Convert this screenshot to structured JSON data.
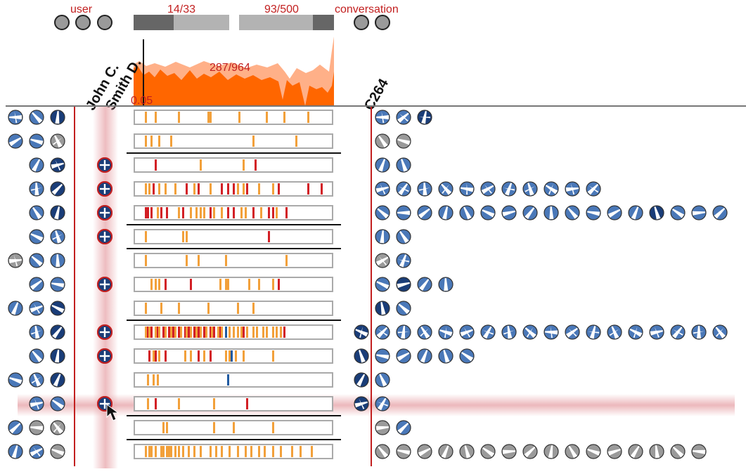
{
  "header": {
    "user_label": "user",
    "conversation_label": "conversation",
    "left_counter": "14/33",
    "right_counter": "93/500",
    "left_fill_fraction": 0.42,
    "right_fill_fraction": 0.78,
    "histogram_counter": "287/964",
    "histogram_threshold": "0.05"
  },
  "columns": {
    "user_a": "John C.",
    "user_b": "Smith D.",
    "conversation": "C264"
  },
  "colors": {
    "accent_red": "#c21f1f",
    "orange": "#ff6600",
    "orange_light": "#ffb088",
    "mark_orange": "#f2a03a",
    "mark_red": "#d21f25",
    "mark_blue": "#1f5aa0",
    "icon_blue": "#4a78b8",
    "icon_dark": "#1a3d78",
    "icon_gray": "#9a9a9a",
    "highlight": "#e8a0a6"
  },
  "rows": [
    {
      "left": [
        "blue",
        "blue",
        "dark"
      ],
      "smith": false,
      "marks": [
        [
          "o",
          5
        ],
        [
          "o",
          10
        ],
        [
          "o",
          22
        ],
        [
          "o",
          37
        ],
        [
          "o",
          38
        ],
        [
          "o",
          53
        ],
        [
          "o",
          67
        ],
        [
          "o",
          76
        ],
        [
          "o",
          88
        ]
      ],
      "right": [
        "blue",
        "blue",
        "dark"
      ],
      "c264": false,
      "sep": false
    },
    {
      "left": [
        "blue",
        "blue",
        "gray"
      ],
      "extra": 1,
      "smith": false,
      "marks": [
        [
          "o",
          5
        ],
        [
          "o",
          8
        ],
        [
          "o",
          12
        ],
        [
          "o",
          18
        ],
        [
          "o",
          60
        ],
        [
          "o",
          82
        ]
      ],
      "right": [
        "gray",
        "gray"
      ],
      "c264": false,
      "sep": true
    },
    {
      "left": [
        "blue",
        "dark"
      ],
      "smith": true,
      "marks": [
        [
          "r",
          10
        ],
        [
          "o",
          33
        ],
        [
          "o",
          55
        ],
        [
          "r",
          61
        ]
      ],
      "right": [
        "blue",
        "blue"
      ],
      "c264": false,
      "sep": false
    },
    {
      "left": [
        "blue",
        "dark"
      ],
      "smith": true,
      "marks": [
        [
          "o",
          5
        ],
        [
          "o",
          7
        ],
        [
          "r",
          9
        ],
        [
          "o",
          12
        ],
        [
          "o",
          15
        ],
        [
          "o",
          20
        ],
        [
          "r",
          26
        ],
        [
          "o",
          30
        ],
        [
          "r",
          32
        ],
        [
          "o",
          38
        ],
        [
          "r",
          44
        ],
        [
          "r",
          47
        ],
        [
          "r",
          50
        ],
        [
          "o",
          52
        ],
        [
          "o",
          55
        ],
        [
          "r",
          57
        ],
        [
          "o",
          63
        ],
        [
          "o",
          70
        ],
        [
          "r",
          73
        ],
        [
          "r",
          88
        ],
        [
          "r",
          95
        ]
      ],
      "right": [
        "blue",
        "blue",
        "blue",
        "blue",
        "blue",
        "blue",
        "blue",
        "blue",
        "blue",
        "blue",
        "blue"
      ],
      "c264": false,
      "sep": false
    },
    {
      "left": [
        "blue",
        "dark"
      ],
      "smith": true,
      "marks": [
        [
          "r",
          5
        ],
        [
          "r",
          6
        ],
        [
          "r",
          8
        ],
        [
          "o",
          11
        ],
        [
          "r",
          13
        ],
        [
          "r",
          16
        ],
        [
          "o",
          22
        ],
        [
          "r",
          24
        ],
        [
          "o",
          28
        ],
        [
          "o",
          31
        ],
        [
          "o",
          33
        ],
        [
          "o",
          35
        ],
        [
          "r",
          38
        ],
        [
          "o",
          40
        ],
        [
          "o",
          44
        ],
        [
          "r",
          47
        ],
        [
          "r",
          50
        ],
        [
          "o",
          54
        ],
        [
          "o",
          56
        ],
        [
          "r",
          60
        ],
        [
          "o",
          64
        ],
        [
          "r",
          68
        ],
        [
          "r",
          70
        ],
        [
          "o",
          72
        ],
        [
          "r",
          77
        ]
      ],
      "right": [
        "blue",
        "blue",
        "blue",
        "blue",
        "blue",
        "blue",
        "blue",
        "blue",
        "blue",
        "blue",
        "blue",
        "blue",
        "blue",
        "dark",
        "blue",
        "blue",
        "blue",
        "blue",
        "blue",
        "blue"
      ],
      "c264": false,
      "sep": true
    },
    {
      "left": [
        "blue",
        "blue"
      ],
      "smith": true,
      "marks": [
        [
          "o",
          5
        ],
        [
          "o",
          24
        ],
        [
          "o",
          26
        ],
        [
          "r",
          68
        ]
      ],
      "right": [
        "blue",
        "blue"
      ],
      "c264": false,
      "sep": true
    },
    {
      "left": [
        "gray",
        "blue",
        "blue"
      ],
      "extra": 1,
      "smith": false,
      "marks": [
        [
          "o",
          5
        ],
        [
          "o",
          26
        ],
        [
          "o",
          32
        ],
        [
          "o",
          46
        ],
        [
          "o",
          77
        ]
      ],
      "right": [
        "gray",
        "blue"
      ],
      "c264": false,
      "sep": false
    },
    {
      "left": [
        "blue",
        "blue"
      ],
      "smith": true,
      "marks": [
        [
          "o",
          8
        ],
        [
          "o",
          10
        ],
        [
          "o",
          12
        ],
        [
          "r",
          15
        ],
        [
          "r",
          28
        ],
        [
          "o",
          43
        ],
        [
          "o",
          46
        ],
        [
          "o",
          47
        ],
        [
          "o",
          58
        ],
        [
          "o",
          63
        ],
        [
          "o",
          70
        ],
        [
          "r",
          73
        ]
      ],
      "right": [
        "blue",
        "dark",
        "blue",
        "blue"
      ],
      "c264": false,
      "sep": false
    },
    {
      "left": [
        "blue",
        "blue",
        "dark"
      ],
      "smith": false,
      "marks": [
        [
          "o",
          5
        ],
        [
          "o",
          13
        ],
        [
          "o",
          22
        ],
        [
          "o",
          37
        ],
        [
          "o",
          52
        ],
        [
          "o",
          60
        ]
      ],
      "right": [
        "dark",
        "blue"
      ],
      "c264": false,
      "sep": true
    },
    {
      "left": [
        "blue",
        "dark"
      ],
      "smith": true,
      "marks": [
        [
          "o",
          5
        ],
        [
          "r",
          6
        ],
        [
          "o",
          7
        ],
        [
          "r",
          8
        ],
        [
          "o",
          10
        ],
        [
          "r",
          11
        ],
        [
          "o",
          12
        ],
        [
          "r",
          14
        ],
        [
          "o",
          15
        ],
        [
          "r",
          17
        ],
        [
          "o",
          18
        ],
        [
          "r",
          19
        ],
        [
          "o",
          20
        ],
        [
          "r",
          22
        ],
        [
          "o",
          23
        ],
        [
          "r",
          25
        ],
        [
          "o",
          26
        ],
        [
          "r",
          27
        ],
        [
          "o",
          28
        ],
        [
          "r",
          30
        ],
        [
          "o",
          31
        ],
        [
          "r",
          32
        ],
        [
          "o",
          33
        ],
        [
          "r",
          35
        ],
        [
          "o",
          36
        ],
        [
          "r",
          38
        ],
        [
          "o",
          39
        ],
        [
          "r",
          40
        ],
        [
          "o",
          42
        ],
        [
          "r",
          43
        ],
        [
          "o",
          44
        ],
        [
          "b",
          46
        ],
        [
          "o",
          48
        ],
        [
          "o",
          50
        ],
        [
          "o",
          52
        ],
        [
          "o",
          54
        ],
        [
          "r",
          55
        ],
        [
          "o",
          57
        ],
        [
          "o",
          60
        ],
        [
          "o",
          62
        ],
        [
          "o",
          65
        ],
        [
          "o",
          67
        ],
        [
          "o",
          70
        ],
        [
          "o",
          72
        ],
        [
          "o",
          74
        ],
        [
          "r",
          76
        ]
      ],
      "right": [
        "blue",
        "blue",
        "blue",
        "blue",
        "blue",
        "blue",
        "blue",
        "blue",
        "blue",
        "blue",
        "blue",
        "blue",
        "blue",
        "blue",
        "blue",
        "blue",
        "blue",
        "blue",
        "blue"
      ],
      "c264": true,
      "sep": false
    },
    {
      "left": [
        "blue",
        "dark"
      ],
      "smith": true,
      "marks": [
        [
          "r",
          7
        ],
        [
          "o",
          9
        ],
        [
          "r",
          10
        ],
        [
          "o",
          12
        ],
        [
          "r",
          15
        ],
        [
          "o",
          25
        ],
        [
          "o",
          28
        ],
        [
          "r",
          32
        ],
        [
          "o",
          35
        ],
        [
          "r",
          38
        ],
        [
          "o",
          46
        ],
        [
          "o",
          48
        ],
        [
          "b",
          49
        ],
        [
          "o",
          51
        ],
        [
          "o",
          55
        ],
        [
          "o",
          70
        ]
      ],
      "right": [
        "blue",
        "blue",
        "blue",
        "blue",
        "blue"
      ],
      "c264": true,
      "sep": false
    },
    {
      "left": [
        "blue",
        "blue",
        "dark"
      ],
      "smith": false,
      "marks": [
        [
          "o",
          6
        ],
        [
          "o",
          9
        ],
        [
          "o",
          11
        ],
        [
          "b",
          47
        ]
      ],
      "right": [
        "blue"
      ],
      "c264": true,
      "sep": false
    },
    {
      "left": [
        "blue",
        "blue"
      ],
      "smith": true,
      "sel": true,
      "marks": [
        [
          "o",
          6
        ],
        [
          "r",
          10
        ],
        [
          "o",
          22
        ],
        [
          "o",
          40
        ],
        [
          "r",
          57
        ]
      ],
      "right": [
        "blue"
      ],
      "c264": true,
      "sep": true
    },
    {
      "left": [
        "blue",
        "gray",
        "gray"
      ],
      "extra": 1,
      "smith": false,
      "marks": [
        [
          "o",
          14
        ],
        [
          "o",
          16
        ],
        [
          "o",
          40
        ],
        [
          "o",
          50
        ],
        [
          "o",
          70
        ]
      ],
      "right": [
        "gray",
        "blue"
      ],
      "c264": false,
      "sep": true
    },
    {
      "left": [
        "blue",
        "blue",
        "gray"
      ],
      "extra": 1,
      "smith": false,
      "marks": [
        [
          "o",
          5
        ],
        [
          "o",
          7
        ],
        [
          "o",
          8
        ],
        [
          "o",
          10
        ],
        [
          "o",
          13
        ],
        [
          "o",
          14
        ],
        [
          "o",
          16
        ],
        [
          "o",
          17
        ],
        [
          "o",
          18
        ],
        [
          "o",
          20
        ],
        [
          "o",
          22
        ],
        [
          "o",
          24
        ],
        [
          "o",
          27
        ],
        [
          "o",
          30
        ],
        [
          "o",
          33
        ],
        [
          "o",
          38
        ],
        [
          "o",
          41
        ],
        [
          "o",
          44
        ],
        [
          "o",
          48
        ],
        [
          "o",
          52
        ],
        [
          "o",
          56
        ],
        [
          "o",
          59
        ],
        [
          "o",
          63
        ],
        [
          "o",
          66
        ],
        [
          "o",
          70
        ],
        [
          "o",
          74
        ],
        [
          "o",
          80
        ],
        [
          "o",
          84
        ],
        [
          "o",
          90
        ]
      ],
      "right": [
        "gray",
        "gray",
        "gray",
        "gray",
        "gray",
        "gray",
        "gray",
        "gray",
        "gray",
        "gray",
        "gray",
        "gray",
        "gray",
        "gray",
        "gray",
        "gray"
      ],
      "c264": false,
      "sep": false
    }
  ]
}
